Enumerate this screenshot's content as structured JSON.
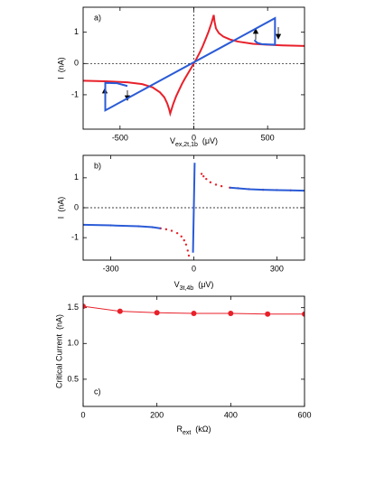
{
  "chart_data": [
    {
      "type": "line",
      "panel_label": "a)",
      "ylabel": "I  (nA)",
      "xlabel": {
        "text": "V",
        "sub": "ex,2t,1b",
        "unit": "(μV)"
      },
      "xlim": [
        -750,
        750
      ],
      "ylim": [
        -2.1,
        1.8
      ],
      "xticks": [
        -500,
        0,
        500
      ],
      "yticks": [
        -1,
        0,
        1
      ],
      "reference_lines": {
        "x": [
          0
        ],
        "y": [
          0
        ]
      },
      "series": [
        {
          "color": "#e8202a",
          "style": "line",
          "x": [
            -750,
            -600,
            -450,
            -350,
            -280,
            -230,
            -200,
            -180,
            -168,
            -160,
            -140,
            -120,
            -100,
            -80,
            -60,
            -40,
            -20,
            0,
            20,
            40,
            60,
            80,
            100,
            120,
            135,
            140,
            150,
            170,
            200,
            250,
            300,
            400,
            500,
            600,
            750
          ],
          "values": [
            -0.55,
            -0.57,
            -0.6,
            -0.66,
            -0.76,
            -0.92,
            -1.08,
            -1.28,
            -1.45,
            -1.6,
            -1.3,
            -1.05,
            -0.85,
            -0.65,
            -0.48,
            -0.32,
            -0.16,
            0,
            0.17,
            0.35,
            0.55,
            0.78,
            1.02,
            1.3,
            1.55,
            1.35,
            1.12,
            0.97,
            0.86,
            0.76,
            0.7,
            0.63,
            0.6,
            0.58,
            0.56
          ]
        },
        {
          "color": "#2a5bd7",
          "style": "line",
          "x": [
            410,
            430,
            460,
            550,
            550,
            -600,
            -600,
            -520,
            -450
          ],
          "values": [
            0.75,
            0.66,
            0.62,
            0.6,
            1.45,
            -1.5,
            -0.62,
            -0.63,
            -0.72
          ]
        }
      ]
    },
    {
      "type": "line",
      "panel_label": "b)",
      "ylabel": "I  (nA)",
      "xlabel": {
        "text": "V",
        "sub": "3t,4b",
        "unit": "(μV)"
      },
      "xlim": [
        -400,
        400
      ],
      "ylim": [
        -1.75,
        1.75
      ],
      "xticks": [
        -300,
        0,
        300
      ],
      "yticks": [
        -1,
        0,
        1
      ],
      "reference_lines": {
        "y": [
          0
        ]
      },
      "series": [
        {
          "color": "#e8202a",
          "style": "dots",
          "x": [
            -400,
            -300,
            -200,
            -150,
            -120,
            -100,
            -80,
            -60,
            -45,
            -35,
            -28,
            -22,
            -18,
            28,
            35,
            45,
            60,
            80,
            100,
            130,
            160,
            200,
            250,
            300,
            350,
            400
          ],
          "values": [
            -0.57,
            -0.59,
            -0.62,
            -0.65,
            -0.69,
            -0.72,
            -0.77,
            -0.85,
            -0.96,
            -1.09,
            -1.23,
            -1.43,
            -1.6,
            1.13,
            1.05,
            0.96,
            0.85,
            0.77,
            0.72,
            0.67,
            0.65,
            0.62,
            0.6,
            0.59,
            0.58,
            0.57
          ]
        },
        {
          "color": "#2a5bd7",
          "style": "line",
          "x": [
            -400,
            -300,
            -200,
            -150,
            -120,
            null,
            -3,
            0,
            3,
            null,
            130,
            160,
            200,
            250,
            300,
            350,
            400
          ],
          "values": [
            -0.57,
            -0.59,
            -0.62,
            -0.65,
            -0.69,
            null,
            -1.5,
            0,
            1.5,
            null,
            0.67,
            0.65,
            0.62,
            0.6,
            0.59,
            0.58,
            0.57
          ]
        }
      ]
    },
    {
      "type": "line",
      "panel_label": "c)",
      "ylabel": "Critical Current  (nA)",
      "xlabel": {
        "text": "R",
        "sub": "ext",
        "unit": "(kΩ)"
      },
      "xlim": [
        0,
        600
      ],
      "ylim": [
        0.12,
        1.66
      ],
      "xticks": [
        0,
        200,
        400,
        600
      ],
      "yticks": [
        0.5,
        {
          "value": 1,
          "label": "1.0"
        },
        1.5
      ],
      "series": [
        {
          "color": "#e8202a",
          "style": "line+dots",
          "x": [
            0,
            100,
            200,
            300,
            400,
            500,
            600
          ],
          "values": [
            1.52,
            1.45,
            1.43,
            1.42,
            1.42,
            1.41,
            1.41
          ]
        }
      ]
    }
  ]
}
